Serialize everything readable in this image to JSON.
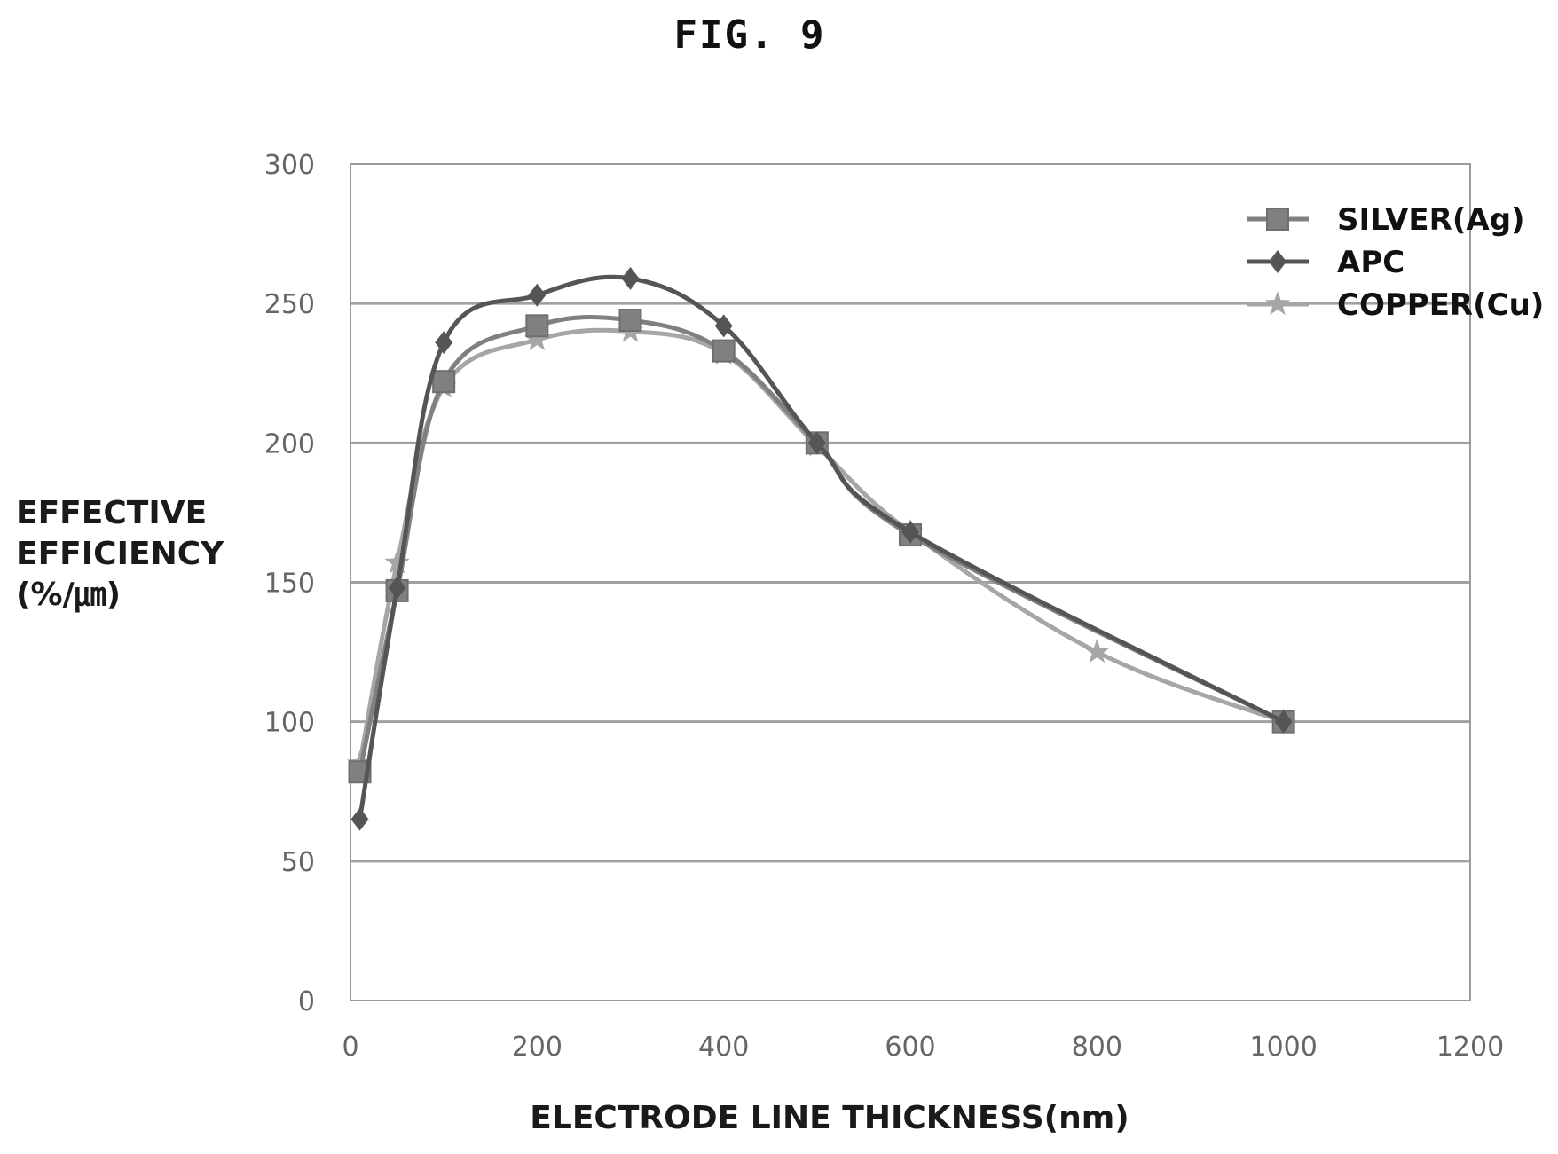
{
  "figure_title": "FIG. 9",
  "chart_data": {
    "type": "line",
    "xlabel": "ELECTRODE LINE THICKNESS(nm)",
    "ylabel_lines": [
      "EFFECTIVE",
      "EFFICIENCY",
      "(%/㎛)"
    ],
    "xlim": [
      0,
      1200
    ],
    "ylim": [
      0,
      300
    ],
    "xticks": [
      0,
      200,
      400,
      600,
      800,
      1000,
      1200
    ],
    "yticks": [
      0,
      50,
      100,
      150,
      200,
      250,
      300
    ],
    "grid": "horizontal",
    "legend_position": "top-right",
    "series": [
      {
        "name": "SILVER(Ag)",
        "marker": "square",
        "color": "#808080",
        "x": [
          10,
          50,
          100,
          200,
          300,
          400,
          500,
          600,
          1000
        ],
        "y": [
          82,
          147,
          222,
          242,
          244,
          233,
          200,
          167,
          100
        ]
      },
      {
        "name": "APC",
        "marker": "diamond",
        "color": "#555555",
        "x": [
          10,
          50,
          100,
          200,
          300,
          400,
          500,
          600,
          1000
        ],
        "y": [
          65,
          148,
          236,
          253,
          259,
          242,
          200,
          168,
          100
        ]
      },
      {
        "name": "COPPER(Cu)",
        "marker": "star",
        "color": "#a6a6a6",
        "x": [
          10,
          50,
          100,
          200,
          300,
          400,
          500,
          600,
          800,
          1000
        ],
        "y": [
          85,
          157,
          220,
          237,
          240,
          232,
          199,
          168,
          125,
          100
        ]
      }
    ]
  }
}
